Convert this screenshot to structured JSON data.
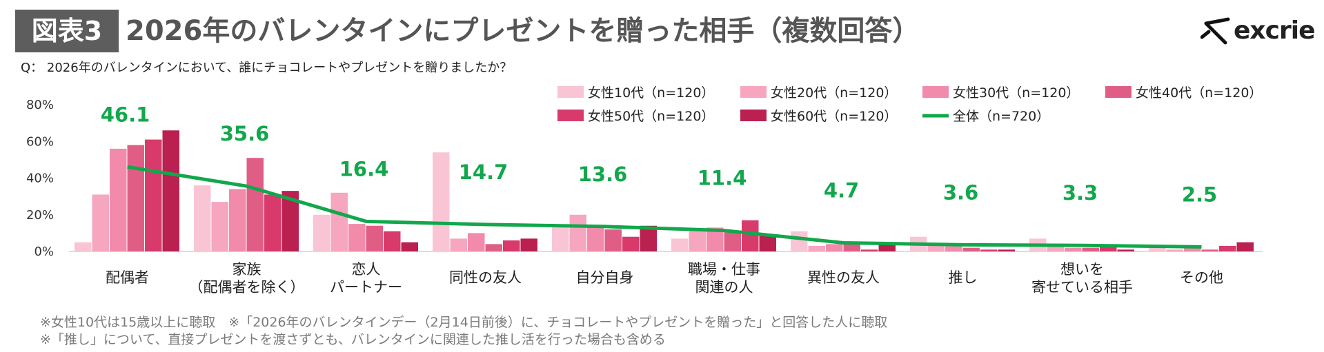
{
  "header": {
    "figure_label": "図表3",
    "title": "2026年のバレンタインにプレゼントを贈った相手（複数回答）",
    "logo_text": "excrie",
    "question": "Q： 2026年のバレンタインにおいて、誰にチョコレートやプレゼントを贈りましたか？"
  },
  "notes": [
    "※女性10代は15歳以上に聴取　※「2026年のバレンタインデー（2月14日前後）に、チョコレートやプレゼントを贈った」と回答した人に聴取",
    "※「推し」について、直接プレゼントを渡さずとも、バレンタインに関連した推し活を行った場合も含める"
  ],
  "chart_data": {
    "type": "bar",
    "overlay": "line",
    "categories": [
      [
        "配偶者"
      ],
      [
        "家族",
        "（配偶者を除く）"
      ],
      [
        "恋人",
        "パートナー"
      ],
      [
        "同性の友人"
      ],
      [
        "自分自身"
      ],
      [
        "職場・仕事",
        "関連の人"
      ],
      [
        "異性の友人"
      ],
      [
        "推し"
      ],
      [
        "想いを",
        "寄せている相手"
      ],
      [
        "その他"
      ]
    ],
    "ylim": [
      0,
      80
    ],
    "yticks": [
      0,
      20,
      40,
      60,
      80
    ],
    "ytick_labels": [
      "0%",
      "20%",
      "40%",
      "60%",
      "80%"
    ],
    "legend_position": "top-right",
    "series": [
      {
        "name": "女性10代（n=120）",
        "color": "#f9c5d5",
        "values": [
          5,
          36,
          20,
          54,
          14,
          7,
          11,
          8,
          7,
          3
        ]
      },
      {
        "name": "女性20代（n=120）",
        "color": "#f7a6c0",
        "values": [
          31,
          27,
          32,
          7,
          20,
          11,
          3,
          3,
          3,
          1
        ]
      },
      {
        "name": "女性30代（n=120）",
        "color": "#f28bab",
        "values": [
          56,
          34,
          15,
          10,
          14,
          13,
          4,
          4,
          2,
          2
        ]
      },
      {
        "name": "女性40代（n=120）",
        "color": "#e05e86",
        "values": [
          58,
          51,
          14,
          4,
          12,
          11,
          4,
          2,
          2,
          1
        ]
      },
      {
        "name": "女性50代（n=120）",
        "color": "#d83a6c",
        "values": [
          61,
          31,
          11,
          6,
          8,
          17,
          1,
          1,
          3,
          3
        ]
      },
      {
        "name": "女性60代（n=120）",
        "color": "#ba2050",
        "values": [
          66,
          33,
          5,
          7,
          14,
          9,
          5,
          1,
          1,
          5
        ]
      }
    ],
    "line_series": {
      "name": "全体（n=720）",
      "color": "#12a74c",
      "values": [
        46.1,
        35.6,
        16.4,
        14.7,
        13.6,
        11.4,
        4.7,
        3.6,
        3.3,
        2.5
      ],
      "labels": [
        "46.1",
        "35.6",
        "16.4",
        "14.7",
        "13.6",
        "11.4",
        "4.7",
        "3.6",
        "3.3",
        "2.5"
      ]
    }
  }
}
